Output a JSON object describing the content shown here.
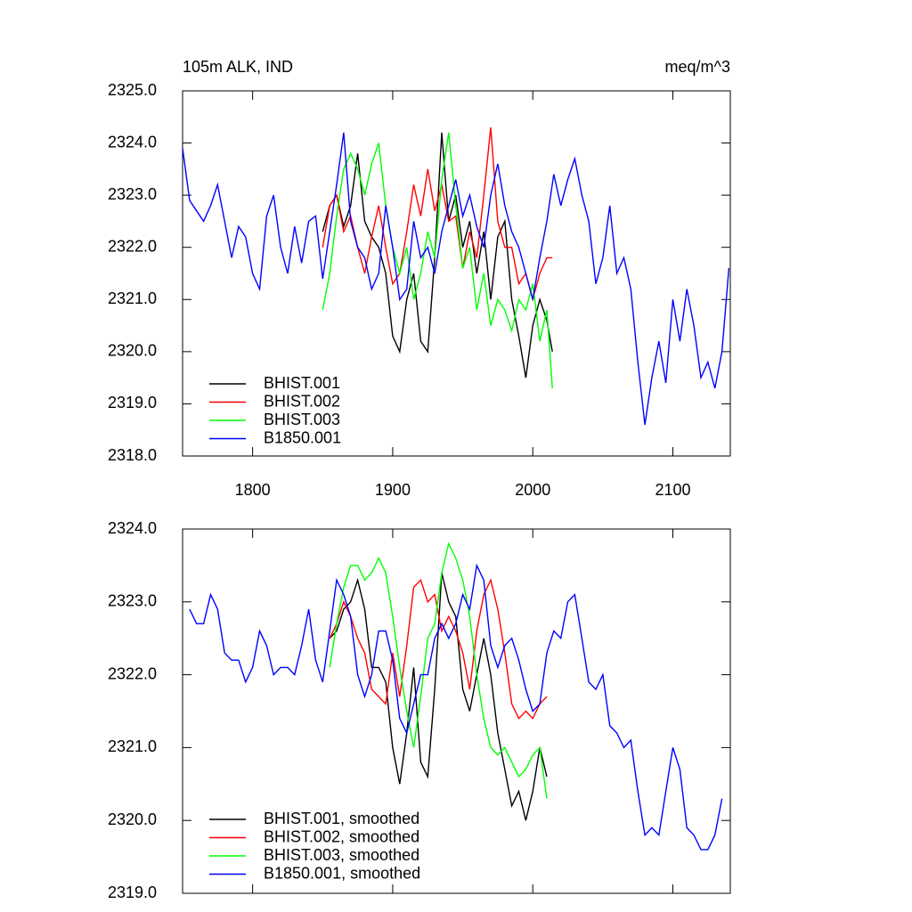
{
  "chart_data": [
    {
      "type": "line",
      "title": "105m ALK, IND",
      "subtitle": "meq/m^3",
      "xlim": [
        1750,
        2141
      ],
      "xticks": [
        1800,
        1900,
        2000,
        2100
      ],
      "ylim": [
        2318,
        2325
      ],
      "yticks": [
        {
          "value": 2318,
          "label": "2318.0"
        },
        {
          "value": 2319,
          "label": "2319.0"
        },
        {
          "value": 2320,
          "label": "2320.0"
        },
        {
          "value": 2321,
          "label": "2321.0"
        },
        {
          "value": 2322,
          "label": "2322.0"
        },
        {
          "value": 2323,
          "label": "2323.0"
        },
        {
          "value": 2324,
          "label": "2324.0"
        },
        {
          "value": 2325,
          "label": "2325.0"
        }
      ],
      "legend": "lower left",
      "series": [
        {
          "name": "BHIST.001",
          "color": "#000000",
          "x": [
            1850,
            1855,
            1860,
            1865,
            1870,
            1875,
            1880,
            1885,
            1890,
            1895,
            1900,
            1905,
            1910,
            1915,
            1920,
            1925,
            1930,
            1935,
            1940,
            1945,
            1950,
            1955,
            1960,
            1965,
            1970,
            1975,
            1980,
            1985,
            1990,
            1995,
            2000,
            2005,
            2010,
            2014
          ],
          "values": [
            2322.3,
            2322.8,
            2323.0,
            2322.4,
            2322.8,
            2323.8,
            2322.5,
            2322.2,
            2322.0,
            2321.5,
            2320.3,
            2320.0,
            2321.0,
            2321.5,
            2320.2,
            2320.0,
            2321.8,
            2324.2,
            2322.5,
            2323.0,
            2322.0,
            2322.5,
            2321.5,
            2322.3,
            2321.0,
            2322.2,
            2322.5,
            2321.0,
            2320.3,
            2319.5,
            2320.5,
            2321.0,
            2320.6,
            2320.0
          ]
        },
        {
          "name": "BHIST.002",
          "color": "#ff0000",
          "x": [
            1850,
            1855,
            1860,
            1865,
            1870,
            1875,
            1880,
            1885,
            1890,
            1895,
            1900,
            1905,
            1910,
            1915,
            1920,
            1925,
            1930,
            1935,
            1940,
            1945,
            1950,
            1955,
            1960,
            1965,
            1970,
            1975,
            1980,
            1985,
            1990,
            1995,
            2000,
            2005,
            2010,
            2014
          ],
          "values": [
            2322.0,
            2322.8,
            2323.0,
            2322.3,
            2322.6,
            2322.0,
            2321.5,
            2322.2,
            2322.8,
            2322.0,
            2321.3,
            2321.5,
            2322.3,
            2323.2,
            2322.6,
            2323.5,
            2322.7,
            2323.2,
            2322.5,
            2322.6,
            2321.6,
            2322.3,
            2321.8,
            2323.0,
            2324.3,
            2322.5,
            2322.0,
            2322.0,
            2321.3,
            2321.5,
            2321.0,
            2321.5,
            2321.8,
            2321.8
          ]
        },
        {
          "name": "BHIST.003",
          "color": "#00ff00",
          "x": [
            1850,
            1855,
            1860,
            1865,
            1870,
            1875,
            1880,
            1885,
            1890,
            1895,
            1900,
            1905,
            1910,
            1915,
            1920,
            1925,
            1930,
            1935,
            1940,
            1945,
            1950,
            1955,
            1960,
            1965,
            1970,
            1975,
            1980,
            1985,
            1990,
            1995,
            2000,
            2005,
            2010,
            2014
          ],
          "values": [
            2320.8,
            2321.5,
            2322.6,
            2323.5,
            2323.8,
            2323.5,
            2323.0,
            2323.6,
            2324.0,
            2322.8,
            2322.0,
            2321.5,
            2322.0,
            2321.0,
            2321.5,
            2322.3,
            2321.8,
            2323.3,
            2324.2,
            2322.8,
            2321.6,
            2322.0,
            2320.8,
            2321.5,
            2320.5,
            2321.0,
            2320.8,
            2320.4,
            2321.0,
            2320.8,
            2321.3,
            2320.2,
            2320.8,
            2319.3
          ]
        },
        {
          "name": "B1850.001",
          "color": "#0000ff",
          "x": [
            1750,
            1755,
            1760,
            1765,
            1770,
            1775,
            1780,
            1785,
            1790,
            1795,
            1800,
            1805,
            1810,
            1815,
            1820,
            1825,
            1830,
            1835,
            1840,
            1845,
            1850,
            1855,
            1860,
            1865,
            1870,
            1875,
            1880,
            1885,
            1890,
            1895,
            1900,
            1905,
            1910,
            1915,
            1920,
            1925,
            1930,
            1935,
            1940,
            1945,
            1950,
            1955,
            1960,
            1965,
            1970,
            1975,
            1980,
            1985,
            1990,
            1995,
            2000,
            2005,
            2010,
            2015,
            2020,
            2025,
            2030,
            2035,
            2040,
            2045,
            2050,
            2055,
            2060,
            2065,
            2070,
            2075,
            2080,
            2085,
            2090,
            2095,
            2100,
            2105,
            2110,
            2115,
            2120,
            2125,
            2130,
            2135,
            2140
          ],
          "values": [
            2323.9,
            2322.9,
            2322.7,
            2322.5,
            2322.8,
            2323.2,
            2322.5,
            2321.8,
            2322.4,
            2322.2,
            2321.5,
            2321.2,
            2322.6,
            2323.0,
            2322.0,
            2321.5,
            2322.4,
            2321.7,
            2322.5,
            2322.6,
            2321.4,
            2322.3,
            2323.2,
            2324.2,
            2322.5,
            2322.0,
            2321.8,
            2321.2,
            2321.5,
            2322.8,
            2322.0,
            2321.0,
            2321.2,
            2322.5,
            2321.8,
            2322.0,
            2321.5,
            2322.3,
            2322.8,
            2323.3,
            2322.6,
            2323.0,
            2322.4,
            2322.0,
            2323.0,
            2323.6,
            2322.8,
            2322.3,
            2322.0,
            2321.5,
            2321.0,
            2321.8,
            2322.5,
            2323.4,
            2322.8,
            2323.3,
            2323.7,
            2323.0,
            2322.5,
            2321.3,
            2321.8,
            2322.8,
            2321.5,
            2321.8,
            2321.2,
            2319.8,
            2318.6,
            2319.5,
            2320.2,
            2319.4,
            2321.0,
            2320.2,
            2321.2,
            2320.5,
            2319.5,
            2319.8,
            2319.3,
            2320.0,
            2321.6
          ]
        }
      ]
    },
    {
      "type": "line",
      "xlim": [
        1750,
        2141
      ],
      "xticks": [
        1800,
        1900,
        2000,
        2100
      ],
      "ylim": [
        2319,
        2324
      ],
      "yticks": [
        {
          "value": 2319,
          "label": "2319.0"
        },
        {
          "value": 2320,
          "label": "2320.0"
        },
        {
          "value": 2321,
          "label": "2321.0"
        },
        {
          "value": 2322,
          "label": "2322.0"
        },
        {
          "value": 2323,
          "label": "2323.0"
        },
        {
          "value": 2324,
          "label": "2324.0"
        }
      ],
      "legend": "lower left",
      "series": [
        {
          "name": "BHIST.001, smoothed",
          "color": "#000000",
          "x": [
            1855,
            1860,
            1865,
            1870,
            1875,
            1880,
            1885,
            1890,
            1895,
            1900,
            1905,
            1910,
            1915,
            1920,
            1925,
            1930,
            1935,
            1940,
            1945,
            1950,
            1955,
            1960,
            1965,
            1970,
            1975,
            1980,
            1985,
            1990,
            1995,
            2000,
            2005,
            2010
          ],
          "values": [
            2322.5,
            2322.6,
            2322.9,
            2323.0,
            2323.3,
            2322.9,
            2322.1,
            2322.1,
            2321.9,
            2321.0,
            2320.5,
            2321.2,
            2322.1,
            2320.8,
            2320.6,
            2321.8,
            2323.4,
            2323.0,
            2322.8,
            2321.8,
            2321.5,
            2322.0,
            2322.5,
            2322.0,
            2321.2,
            2320.7,
            2320.2,
            2320.4,
            2320.0,
            2320.4,
            2321.0,
            2320.6
          ]
        },
        {
          "name": "BHIST.002, smoothed",
          "color": "#ff0000",
          "x": [
            1855,
            1860,
            1865,
            1870,
            1875,
            1880,
            1885,
            1890,
            1895,
            1900,
            1905,
            1910,
            1915,
            1920,
            1925,
            1930,
            1935,
            1940,
            1945,
            1950,
            1955,
            1960,
            1965,
            1970,
            1975,
            1980,
            1985,
            1990,
            1995,
            2000,
            2005,
            2010
          ],
          "values": [
            2322.5,
            2322.7,
            2323.0,
            2322.8,
            2322.5,
            2322.3,
            2321.8,
            2321.7,
            2321.6,
            2322.3,
            2321.7,
            2322.4,
            2323.2,
            2323.3,
            2323.0,
            2323.1,
            2322.6,
            2322.8,
            2322.6,
            2322.3,
            2321.8,
            2322.6,
            2323.1,
            2323.3,
            2322.9,
            2322.3,
            2321.6,
            2321.4,
            2321.5,
            2321.4,
            2321.6,
            2321.7
          ]
        },
        {
          "name": "BHIST.003, smoothed",
          "color": "#00ff00",
          "x": [
            1855,
            1860,
            1865,
            1870,
            1875,
            1880,
            1885,
            1890,
            1895,
            1900,
            1905,
            1910,
            1915,
            1920,
            1925,
            1930,
            1935,
            1940,
            1945,
            1950,
            1955,
            1960,
            1965,
            1970,
            1975,
            1980,
            1985,
            1990,
            1995,
            2000,
            2005,
            2010
          ],
          "values": [
            2322.1,
            2322.7,
            2323.2,
            2323.5,
            2323.5,
            2323.3,
            2323.4,
            2323.6,
            2323.4,
            2322.8,
            2322.1,
            2321.5,
            2321.0,
            2321.7,
            2322.5,
            2322.7,
            2323.4,
            2323.8,
            2323.6,
            2323.3,
            2322.8,
            2322.0,
            2321.4,
            2321.0,
            2320.9,
            2321.0,
            2320.8,
            2320.6,
            2320.7,
            2320.9,
            2321.0,
            2320.3
          ]
        },
        {
          "name": "B1850.001, smoothed",
          "color": "#0000ff",
          "x": [
            1755,
            1760,
            1765,
            1770,
            1775,
            1780,
            1785,
            1790,
            1795,
            1800,
            1805,
            1810,
            1815,
            1820,
            1825,
            1830,
            1835,
            1840,
            1845,
            1850,
            1855,
            1860,
            1865,
            1870,
            1875,
            1880,
            1885,
            1890,
            1895,
            1900,
            1905,
            1910,
            1915,
            1920,
            1925,
            1930,
            1935,
            1940,
            1945,
            1950,
            1955,
            1960,
            1965,
            1970,
            1975,
            1980,
            1985,
            1990,
            1995,
            2000,
            2005,
            2010,
            2015,
            2020,
            2025,
            2030,
            2035,
            2040,
            2045,
            2050,
            2055,
            2060,
            2065,
            2070,
            2075,
            2080,
            2085,
            2090,
            2095,
            2100,
            2105,
            2110,
            2115,
            2120,
            2125,
            2130,
            2135
          ],
          "values": [
            2322.9,
            2322.7,
            2322.7,
            2323.1,
            2322.9,
            2322.3,
            2322.2,
            2322.2,
            2321.9,
            2322.1,
            2322.6,
            2322.4,
            2322.0,
            2322.1,
            2322.1,
            2322.0,
            2322.4,
            2322.9,
            2322.2,
            2321.9,
            2322.6,
            2323.3,
            2323.1,
            2322.8,
            2322.0,
            2321.7,
            2322.0,
            2322.6,
            2322.6,
            2322.2,
            2321.4,
            2321.2,
            2321.6,
            2322.0,
            2322.0,
            2322.5,
            2322.7,
            2322.5,
            2322.7,
            2323.1,
            2322.9,
            2323.5,
            2323.3,
            2322.4,
            2322.1,
            2322.4,
            2322.5,
            2322.2,
            2321.8,
            2321.5,
            2321.6,
            2322.3,
            2322.6,
            2322.5,
            2323.0,
            2323.1,
            2322.5,
            2321.9,
            2321.8,
            2322.0,
            2321.3,
            2321.2,
            2321.0,
            2321.1,
            2320.4,
            2319.8,
            2319.9,
            2319.8,
            2320.4,
            2321.0,
            2320.7,
            2319.9,
            2319.8,
            2319.6,
            2319.6,
            2319.8,
            2320.3
          ]
        }
      ]
    }
  ]
}
